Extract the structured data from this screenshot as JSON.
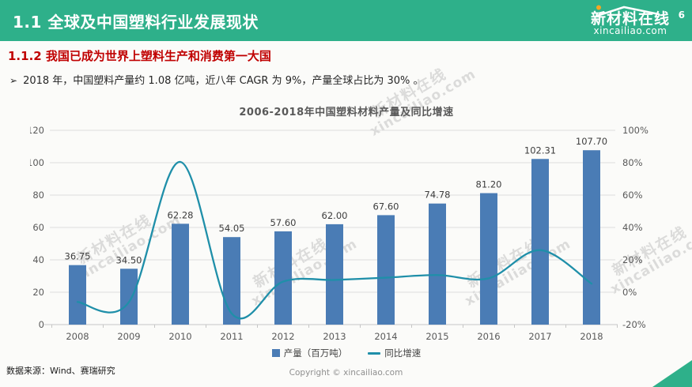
{
  "header": {
    "title": "1.1 全球及中国塑料行业发展现状",
    "logo": {
      "name": "新材料在线",
      "domain": "xincailiao.com"
    }
  },
  "subtitle": "1.1.2 我国已成为世界上塑料生产和消费第一大国",
  "bullet": {
    "marker": "➢",
    "text": "2018 年，中国塑料产量约 1.08 亿吨，近八年 CAGR 为 9%，产量全球占比为 30% 。"
  },
  "chart_data": {
    "type": "bar+line",
    "title": "2006-2018年中国塑料材料产量及同比增速",
    "categories": [
      "2008",
      "2009",
      "2010",
      "2011",
      "2012",
      "2013",
      "2014",
      "2015",
      "2016",
      "2017",
      "2018"
    ],
    "series": [
      {
        "name": "产量（百万吨）",
        "type": "bar",
        "axis": "left",
        "color": "#4A7CB5",
        "values": [
          36.75,
          34.5,
          62.28,
          54.05,
          57.6,
          62.0,
          67.6,
          74.78,
          81.2,
          102.31,
          107.7
        ],
        "value_labels": [
          "36.75",
          "34.50",
          "62.28",
          "54.05",
          "57.60",
          "62.00",
          "67.60",
          "74.78",
          "81.20",
          "102.31",
          "107.70"
        ]
      },
      {
        "name": "同比增速",
        "type": "line",
        "axis": "right",
        "color": "#1F8FA9",
        "values": [
          -6.0,
          -6.1,
          80.5,
          -13.2,
          6.6,
          7.6,
          9.0,
          10.6,
          8.6,
          26.0,
          5.3
        ]
      }
    ],
    "left_axis": {
      "min": 0,
      "max": 120,
      "ticks": [
        0,
        20,
        40,
        60,
        80,
        100,
        120
      ]
    },
    "right_axis": {
      "min": -20,
      "max": 100,
      "tick_labels": [
        "-20%",
        "0%",
        "20%",
        "40%",
        "60%",
        "80%",
        "100%"
      ]
    },
    "grid": true,
    "legend_position": "bottom"
  },
  "footer": {
    "source": "数据来源：Wind、赛瑞研究",
    "copyright": "Copyright © xincailiao.com",
    "page": "6"
  },
  "watermark": {
    "line1": "新材料在线",
    "line2": "xincailiao.com"
  },
  "colors": {
    "header_bg": "#2EB08A",
    "subtitle_red": "#C00000",
    "bar_blue": "#4A7CB5",
    "line_teal": "#1F8FA9",
    "grid_gray": "#dddddd",
    "logo_dot_orange": "#F5A623"
  }
}
